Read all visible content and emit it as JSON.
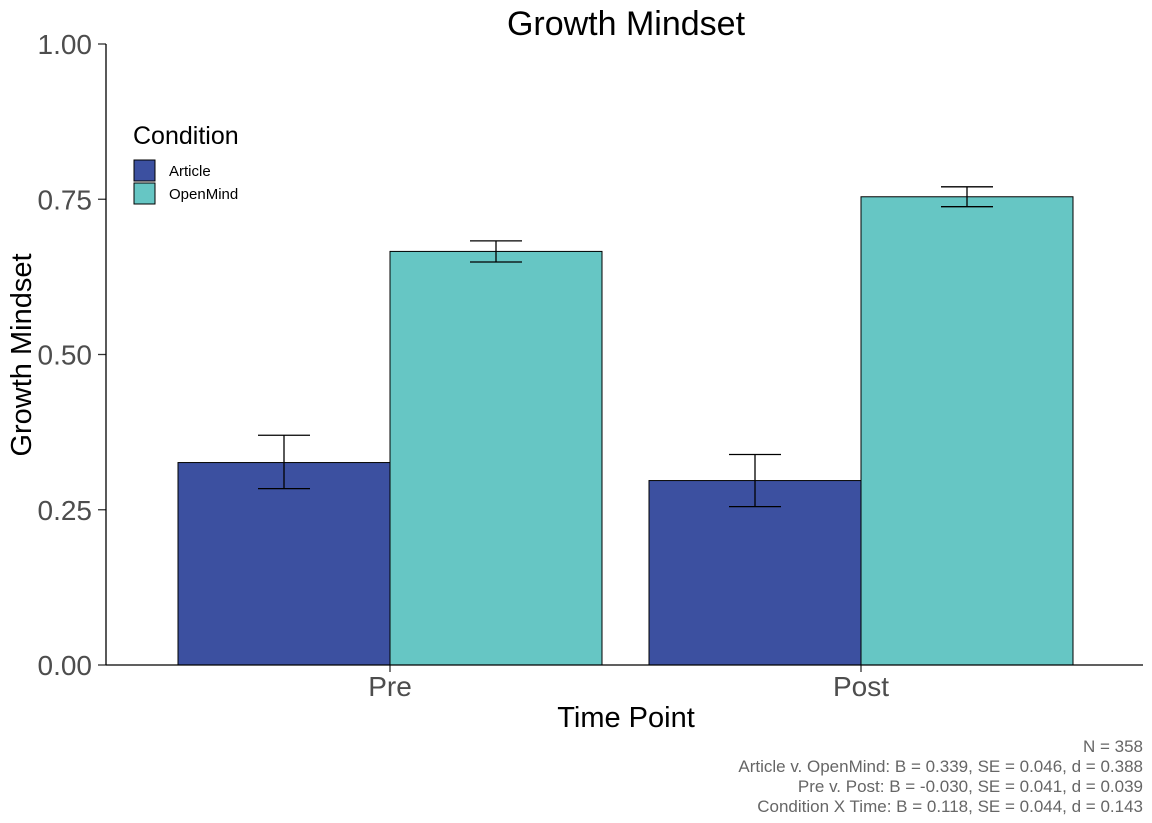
{
  "chart_data": {
    "type": "bar",
    "title": "Growth Mindset",
    "xlabel": "Time Point",
    "ylabel": "Growth Mindset",
    "categories": [
      "Pre",
      "Post"
    ],
    "series": [
      {
        "name": "Article",
        "color": "#3C50A0",
        "values": [
          0.326,
          0.297
        ],
        "error_low": [
          0.284,
          0.255
        ],
        "error_high": [
          0.37,
          0.339
        ]
      },
      {
        "name": "OpenMind",
        "color": "#66C6C4",
        "values": [
          0.666,
          0.754
        ],
        "error_low": [
          0.649,
          0.738
        ],
        "error_high": [
          0.683,
          0.77
        ]
      }
    ],
    "ylim": [
      0,
      1
    ],
    "yticks": [
      "0.00",
      "0.25",
      "0.50",
      "0.75",
      "1.00"
    ],
    "ytick_values": [
      0,
      0.25,
      0.5,
      0.75,
      1
    ],
    "grid": false,
    "legend": {
      "title": "Condition",
      "placement": "top-left"
    },
    "caption": [
      "N = 358",
      "Article v. OpenMind: B = 0.339, SE = 0.046, d = 0.388",
      "Pre v. Post: B = -0.030, SE = 0.041, d = 0.039",
      "Condition X Time: B = 0.118, SE = 0.044, d = 0.143"
    ]
  }
}
